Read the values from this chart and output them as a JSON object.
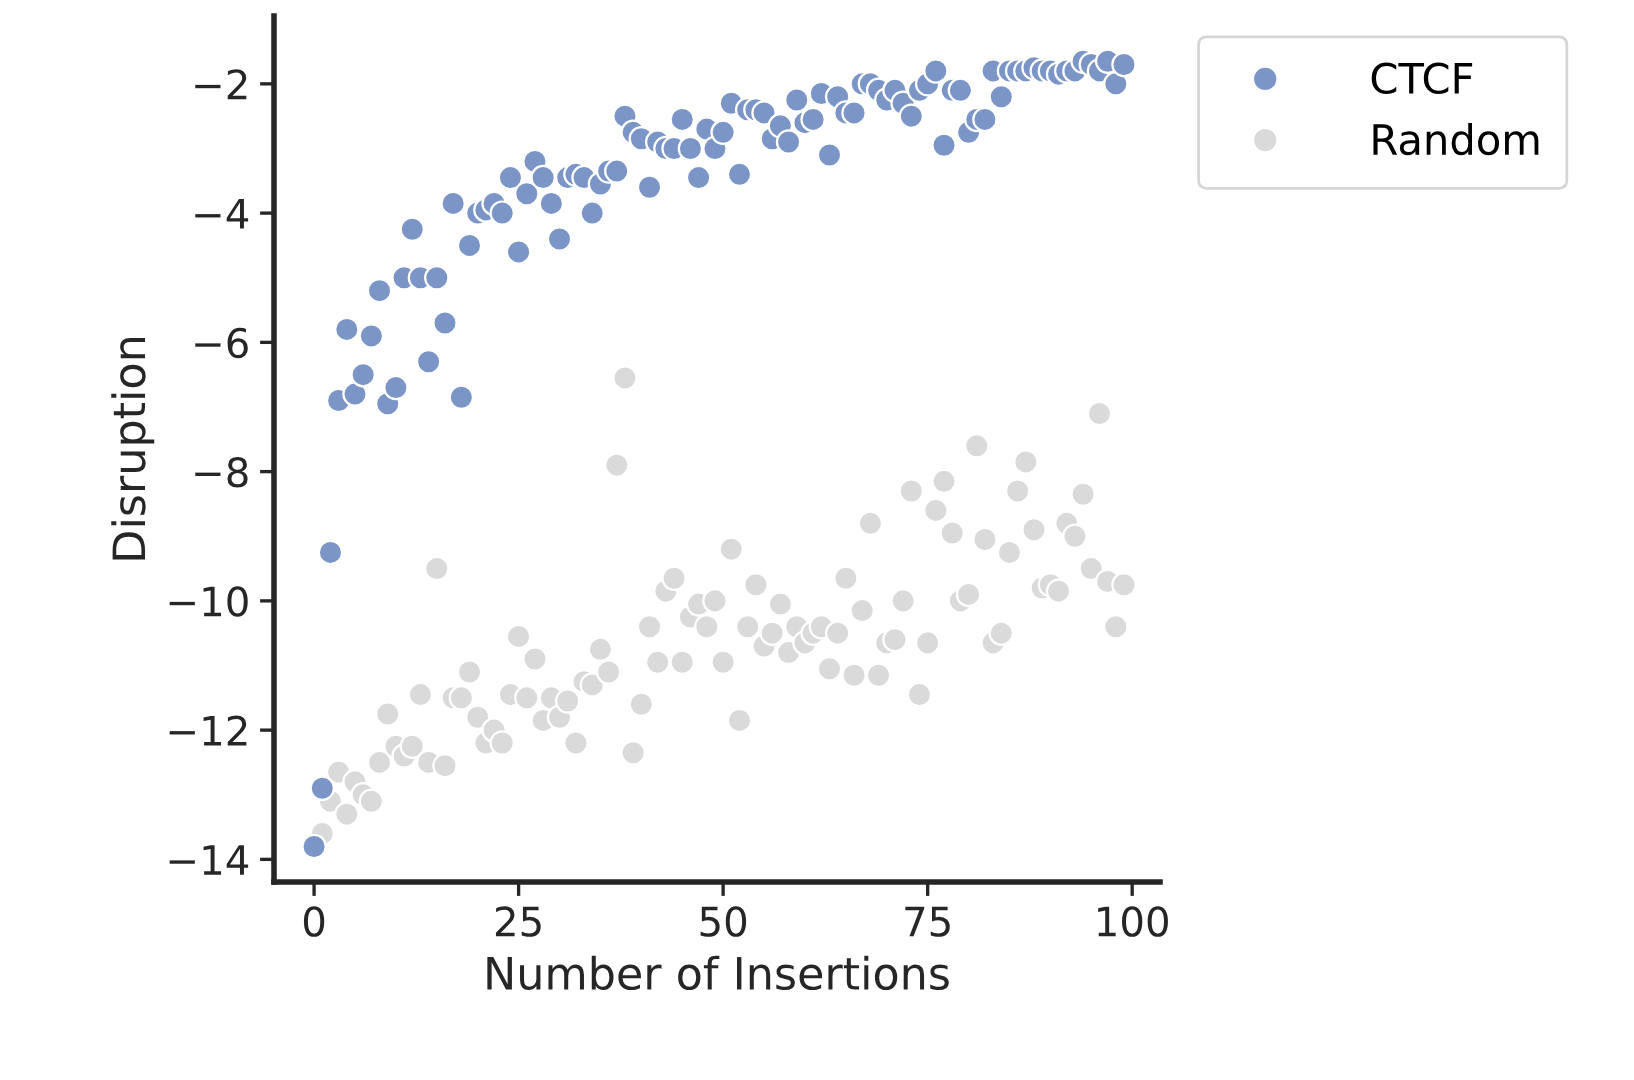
{
  "chart_data": {
    "type": "scatter",
    "xlabel": "Number of Insertions",
    "ylabel": "Disruption",
    "x": [
      0,
      1,
      2,
      3,
      4,
      5,
      6,
      7,
      8,
      9,
      10,
      11,
      12,
      13,
      14,
      15,
      16,
      17,
      18,
      19,
      20,
      21,
      22,
      23,
      24,
      25,
      26,
      27,
      28,
      29,
      30,
      31,
      32,
      33,
      34,
      35,
      36,
      37,
      38,
      39,
      40,
      41,
      42,
      43,
      44,
      45,
      46,
      47,
      48,
      49,
      50,
      51,
      52,
      53,
      54,
      55,
      56,
      57,
      58,
      59,
      60,
      61,
      62,
      63,
      64,
      65,
      66,
      67,
      68,
      69,
      70,
      71,
      72,
      73,
      74,
      75,
      76,
      77,
      78,
      79,
      80,
      81,
      82,
      83,
      84,
      85,
      86,
      87,
      88,
      89,
      90,
      91,
      92,
      93,
      94,
      95,
      96,
      97,
      98,
      99
    ],
    "series": [
      {
        "name": "CTCF",
        "color": "#7b96c6",
        "values": [
          -13.8,
          -12.9,
          -9.25,
          -6.9,
          -5.8,
          -6.8,
          -6.5,
          -5.9,
          -5.2,
          -6.95,
          -6.7,
          -5.0,
          -4.25,
          -5.0,
          -6.3,
          -5.0,
          -5.7,
          -3.85,
          -6.85,
          -4.5,
          -4.0,
          -3.95,
          -3.85,
          -4.0,
          -3.45,
          -4.6,
          -3.7,
          -3.2,
          -3.45,
          -3.85,
          -4.4,
          -3.45,
          -3.4,
          -3.45,
          -4.0,
          -3.55,
          -3.35,
          -3.35,
          -2.5,
          -2.75,
          -2.85,
          -3.6,
          -2.9,
          -3.0,
          -3.0,
          -2.55,
          -3.0,
          -3.45,
          -2.7,
          -3.0,
          -2.75,
          -2.3,
          -3.4,
          -2.4,
          -2.4,
          -2.45,
          -2.85,
          -2.65,
          -2.9,
          -2.25,
          -2.6,
          -2.55,
          -2.15,
          -3.1,
          -2.2,
          -2.45,
          -2.45,
          -2.0,
          -2.0,
          -2.1,
          -2.25,
          -2.1,
          -2.3,
          -2.5,
          -2.1,
          -2.0,
          -1.8,
          -2.95,
          -2.1,
          -2.1,
          -2.75,
          -2.55,
          -2.55,
          -1.8,
          -2.2,
          -1.8,
          -1.8,
          -1.8,
          -1.75,
          -1.8,
          -1.8,
          -1.85,
          -1.8,
          -1.8,
          -1.65,
          -1.7,
          -1.8,
          -1.65,
          -2.0,
          -1.7
        ]
      },
      {
        "name": "Random",
        "color": "#dadada",
        "values": [
          null,
          -13.6,
          -13.1,
          -12.65,
          -13.3,
          -12.8,
          -13.0,
          -13.1,
          -12.5,
          -11.75,
          -12.25,
          -12.4,
          -12.25,
          -11.45,
          -12.5,
          -9.5,
          -12.55,
          -11.5,
          -11.5,
          -11.1,
          -11.8,
          -12.2,
          -12.0,
          -12.2,
          -11.45,
          -10.55,
          -11.5,
          -10.9,
          -11.85,
          -11.5,
          -11.8,
          -11.55,
          -12.2,
          -11.25,
          -11.3,
          -10.75,
          -11.1,
          -7.9,
          -6.55,
          -12.35,
          -11.6,
          -10.4,
          -10.95,
          -9.85,
          -9.65,
          -10.95,
          -10.25,
          -10.05,
          -10.4,
          -10.0,
          -10.95,
          -9.2,
          -11.85,
          -10.4,
          -9.75,
          -10.7,
          -10.5,
          -10.05,
          -10.8,
          -10.4,
          -10.65,
          -10.5,
          -10.4,
          -11.05,
          -10.5,
          -9.65,
          -11.15,
          -10.15,
          -8.8,
          -11.15,
          -10.65,
          -10.6,
          -10.0,
          -8.3,
          -11.45,
          -10.65,
          -8.6,
          -8.15,
          -8.95,
          -10.0,
          -9.9,
          -7.6,
          -9.05,
          -10.65,
          -10.5,
          -9.25,
          -8.3,
          -7.85,
          -8.9,
          -9.8,
          -9.75,
          -9.85,
          -8.8,
          -9.0,
          -8.35,
          -9.5,
          -7.1,
          -9.7,
          -10.4,
          -9.75
        ]
      }
    ],
    "xlim": [
      -4.9,
      103.4
    ],
    "ylim": [
      -14.35,
      -0.95
    ],
    "xticks": [
      0,
      25,
      50,
      75,
      100
    ],
    "yticks": [
      {
        "value": -14,
        "label": "−14"
      },
      {
        "value": -12,
        "label": "−12"
      },
      {
        "value": -10,
        "label": "−10"
      },
      {
        "value": -8,
        "label": "−8"
      },
      {
        "value": -6,
        "label": "−6"
      },
      {
        "value": -4,
        "label": "−4"
      },
      {
        "value": -2,
        "label": "−2"
      }
    ],
    "marker": "circle",
    "legend": "top right",
    "grid": false
  }
}
